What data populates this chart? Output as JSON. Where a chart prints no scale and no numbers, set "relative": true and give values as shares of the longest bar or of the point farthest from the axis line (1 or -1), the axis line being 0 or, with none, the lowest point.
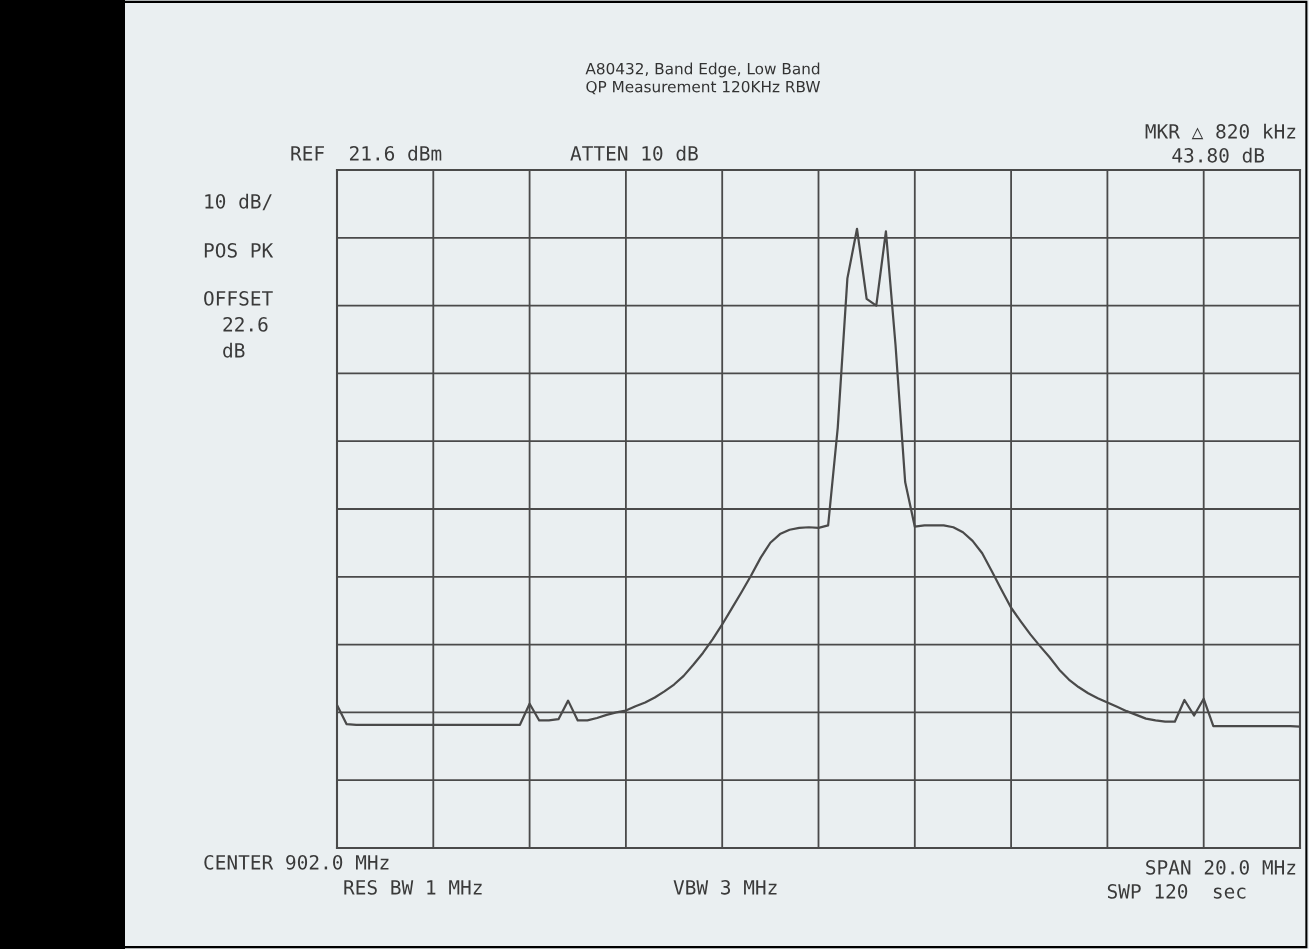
{
  "chart_data": {
    "type": "line",
    "title": "A80432, Band Edge, Low Band",
    "subtitle": "QP Measurement 120KHz RBW",
    "relative": true,
    "grid": true,
    "tick_labels": false,
    "legend": false,
    "annotations": [
      "REF  21.6 dBm",
      "ATTEN 10 dB",
      "MKR △ 820 kHz",
      "43.80 dB",
      "10 dB/",
      "POS PK",
      "OFFSET",
      "22.6",
      "dB",
      "CENTER 902.0 MHz",
      "RES BW 1 MHz",
      "VBW 3 MHz",
      "SPAN 20.0 MHz",
      "SWP 120  sec"
    ],
    "categories": [
      null,
      null,
      null,
      null,
      null,
      null,
      null,
      null,
      null,
      null,
      null,
      null,
      null,
      null,
      null,
      null,
      null,
      null,
      null,
      null,
      null,
      null,
      null,
      null,
      null,
      null,
      null,
      null,
      null,
      null,
      null,
      null,
      null,
      null,
      null,
      null,
      null,
      null,
      null,
      null,
      null,
      null,
      null,
      null,
      null,
      null,
      null,
      null,
      null,
      null,
      null,
      null,
      null,
      null,
      null,
      null,
      null,
      null,
      null,
      null,
      null,
      null,
      null,
      null,
      null,
      null,
      null,
      null,
      null,
      null,
      null,
      null,
      null,
      null,
      null,
      null,
      null,
      null,
      null,
      null,
      null,
      null,
      null,
      null,
      null,
      null,
      null,
      null,
      null,
      null,
      null,
      null,
      null,
      null,
      null,
      null,
      null,
      null,
      null,
      null,
      null
    ],
    "series": [
      {
        "color": "#4a4a4a",
        "marker": "none",
        "line_style": "solid",
        "values": [
          0.231,
          0.2,
          0.199,
          0.199,
          0.199,
          0.199,
          0.199,
          0.199,
          0.199,
          0.199,
          0.199,
          0.199,
          0.199,
          0.199,
          0.199,
          0.199,
          0.199,
          0.199,
          0.199,
          0.199,
          0.233,
          0.206,
          0.206,
          0.208,
          0.238,
          0.206,
          0.206,
          0.21,
          0.215,
          0.219,
          0.222,
          0.229,
          0.235,
          0.243,
          0.253,
          0.264,
          0.278,
          0.296,
          0.315,
          0.337,
          0.361,
          0.387,
          0.413,
          0.44,
          0.469,
          0.493,
          0.507,
          0.514,
          0.517,
          0.518,
          0.517,
          0.521,
          0.679,
          0.92,
          1,
          0.887,
          0.876,
          0.996,
          0.812,
          0.591,
          0.519,
          0.521,
          0.521,
          0.521,
          0.518,
          0.51,
          0.496,
          0.476,
          0.447,
          0.417,
          0.388,
          0.366,
          0.345,
          0.326,
          0.308,
          0.288,
          0.272,
          0.26,
          0.25,
          0.242,
          0.235,
          0.228,
          0.221,
          0.215,
          0.209,
          0.206,
          0.204,
          0.204,
          0.239,
          0.214,
          0.241,
          0.197,
          0.197,
          0.197,
          0.197,
          0.197,
          0.197,
          0.197,
          0.197,
          0.197,
          0.196
        ]
      }
    ]
  }
}
